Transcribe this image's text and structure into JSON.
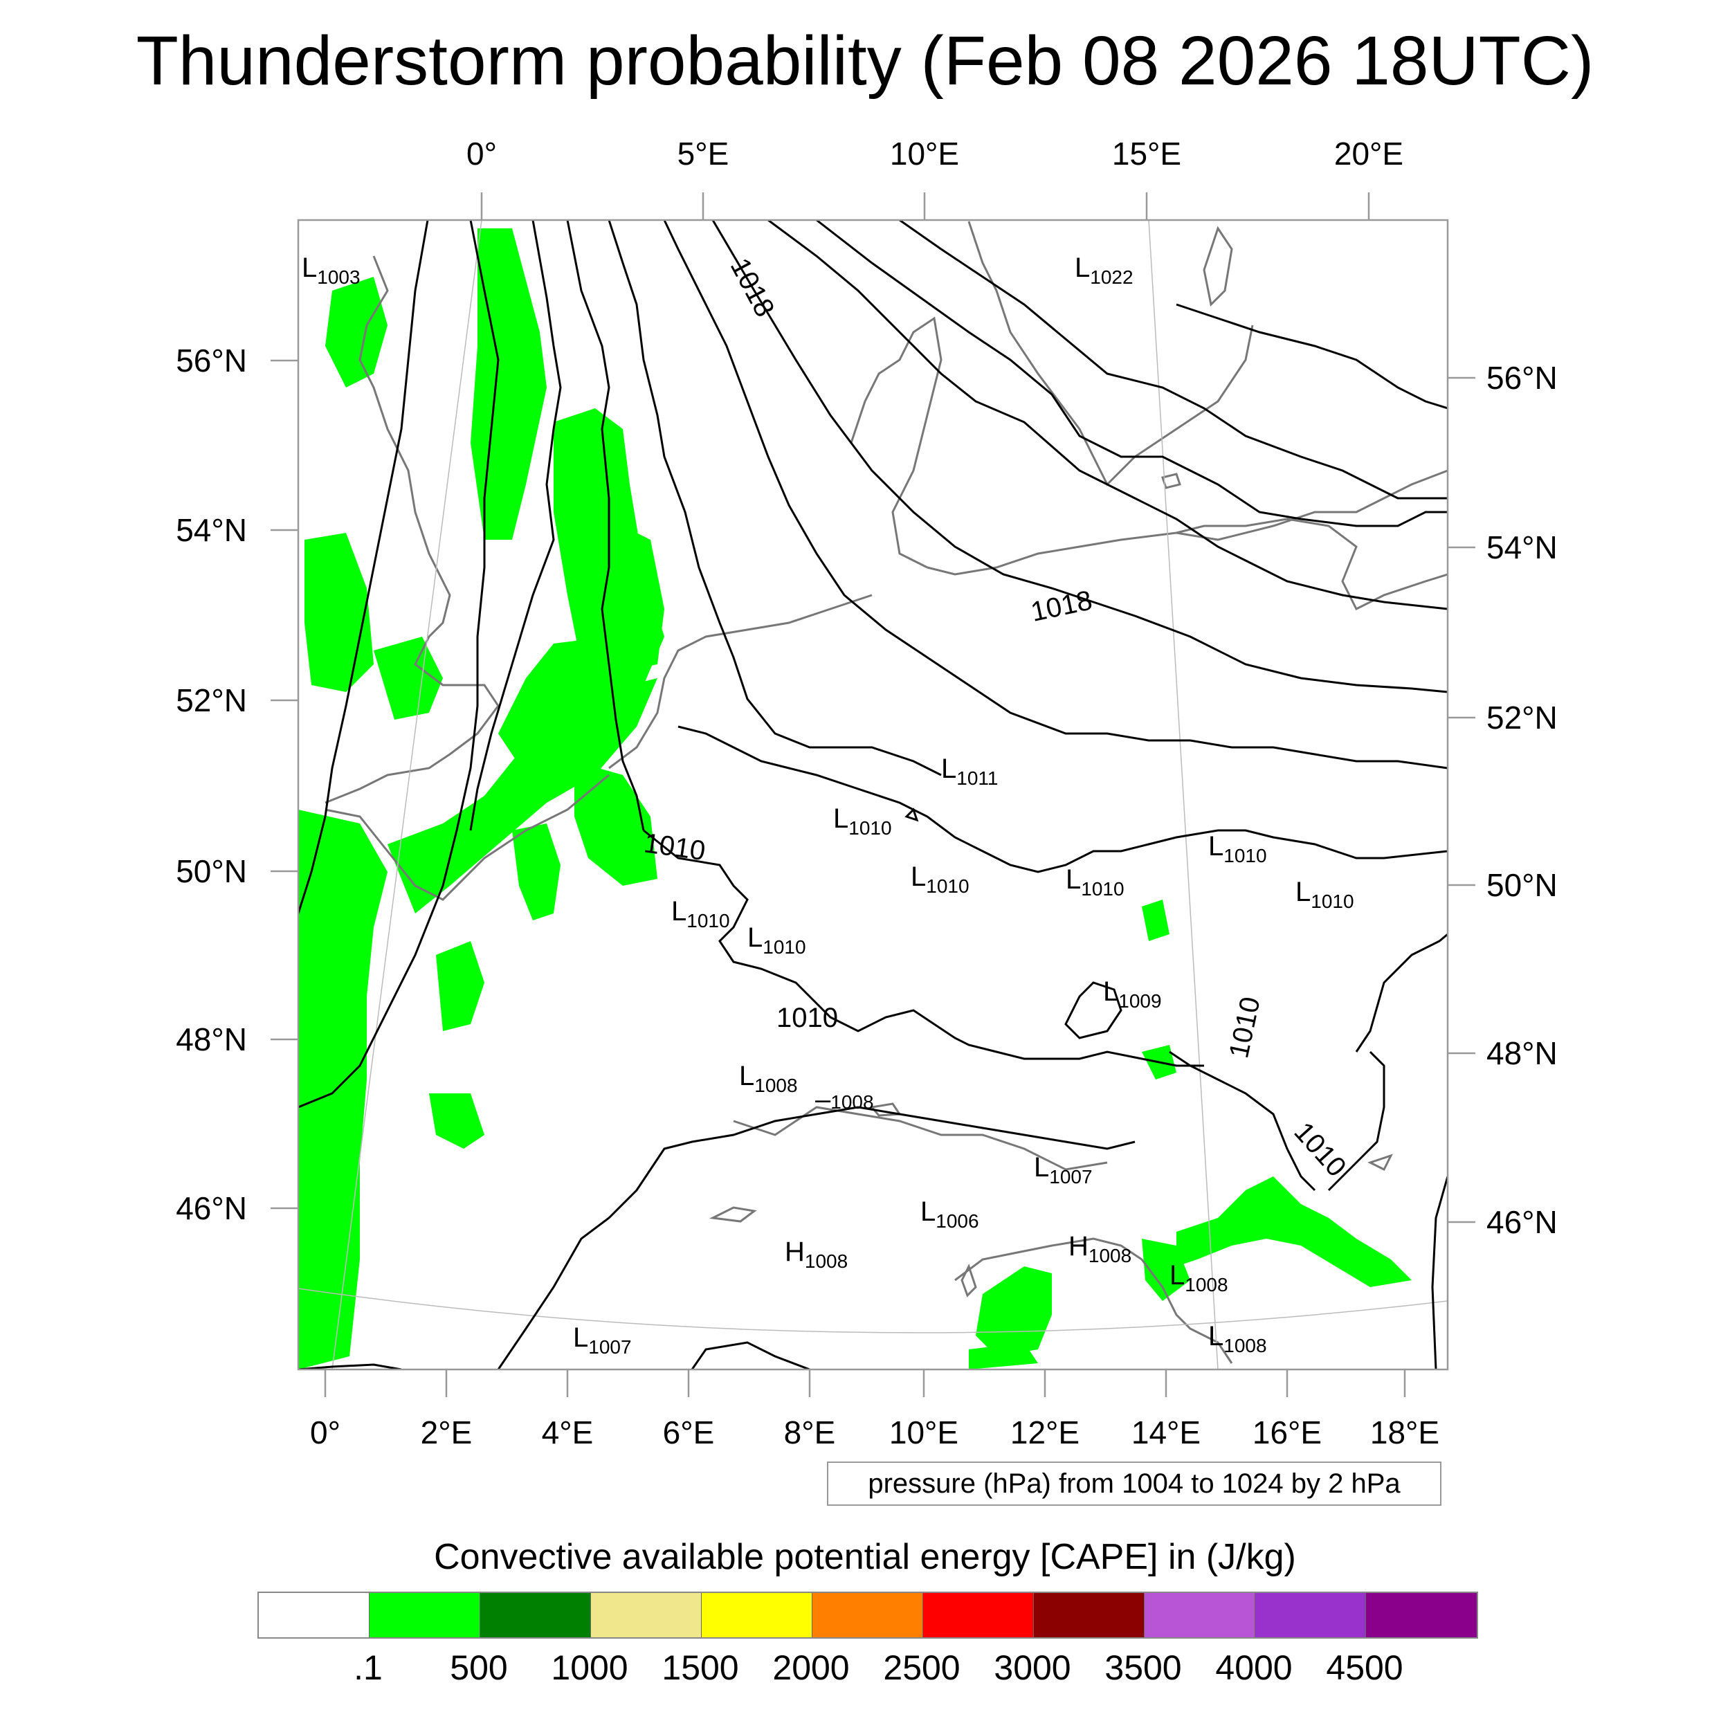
{
  "title": "Thunderstorm probability (Feb 08 2026 18UTC)",
  "top_axis_labels": [
    "0°",
    "5°E",
    "10°E",
    "15°E",
    "20°E"
  ],
  "bottom_axis_labels": [
    "0°",
    "2°E",
    "4°E",
    "6°E",
    "8°E",
    "10°E",
    "12°E",
    "14°E",
    "16°E",
    "18°E"
  ],
  "left_axis_labels": [
    "56°N",
    "54°N",
    "52°N",
    "50°N",
    "48°N",
    "46°N"
  ],
  "right_axis_labels": [
    "56°N",
    "54°N",
    "52°N",
    "50°N",
    "48°N",
    "46°N"
  ],
  "contour_labels": {
    "l1003": {
      "letter": "L",
      "value": "1003"
    },
    "l1022": {
      "letter": "L",
      "value": "1022"
    },
    "l1011": {
      "letter": "L",
      "value": "1011"
    },
    "l1010a": {
      "letter": "L",
      "value": "1010"
    },
    "l1010b": {
      "letter": "L",
      "value": "1010"
    },
    "l1010c": {
      "letter": "L",
      "value": "1010"
    },
    "l1010d": {
      "letter": "L",
      "value": "1010"
    },
    "l1010e": {
      "letter": "L",
      "value": "1010"
    },
    "l1010f": {
      "letter": "L",
      "value": "1010"
    },
    "l1010g": {
      "letter": "L",
      "value": "1010"
    },
    "l1009": {
      "letter": "L",
      "value": "1009"
    },
    "l1008a": {
      "letter": "L",
      "value": "1008"
    },
    "l1007a": {
      "letter": "L",
      "value": "1007"
    },
    "l1006": {
      "letter": "L",
      "value": "1006"
    },
    "h1008a": {
      "letter": "H",
      "value": "1008"
    },
    "h1008b": {
      "letter": "H",
      "value": "1008"
    },
    "l1008b": {
      "letter": "L",
      "value": "1008"
    },
    "l1008c": {
      "letter": "L",
      "value": "1008"
    },
    "l1007b": {
      "letter": "L",
      "value": "1007"
    },
    "iso1018a": "1018",
    "iso1018b": "1018",
    "iso1010a": "1010",
    "iso1010b": "1010",
    "iso1010c": "1010",
    "iso1010d": "1010",
    "iso1008": "1008"
  },
  "info_box": "pressure (hPa) from 1004 to 1024 by 2 hPa",
  "legend": {
    "title": "Convective available potential energy [CAPE] in (J/kg)",
    "colors": [
      "#ffffff",
      "#00ff00",
      "#008000",
      "#f0e68c",
      "#ffff00",
      "#ff8000",
      "#ff0000",
      "#8b0000",
      "#b855d6",
      "#9932cc",
      "#8b008b"
    ],
    "labels": [
      ".1",
      "500",
      "1000",
      "1500",
      "2000",
      "2500",
      "3000",
      "3500",
      "4000",
      "4500"
    ]
  }
}
